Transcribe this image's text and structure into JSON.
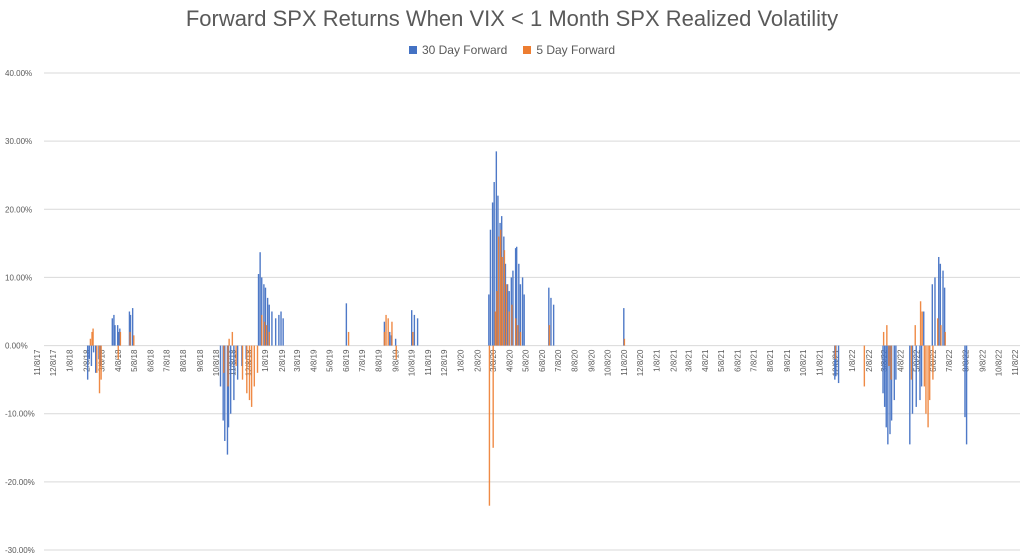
{
  "chart_data": {
    "type": "bar",
    "title": "Forward SPX Returns When VIX < 1 Month SPX Realized Volatility",
    "xlabel": "",
    "ylabel": "",
    "ylim": [
      -0.3,
      0.4
    ],
    "grid": true,
    "legend_position": "top",
    "y_ticks": [
      "40.00%",
      "30.00%",
      "20.00%",
      "10.00%",
      "0.00%",
      "-10.00%",
      "-20.00%",
      "-30.00%"
    ],
    "x_ticks": [
      "11/8/17",
      "12/8/17",
      "1/8/18",
      "2/8/18",
      "3/8/18",
      "4/8/18",
      "5/8/18",
      "6/8/18",
      "7/8/18",
      "8/8/18",
      "9/8/18",
      "10/8/18",
      "11/8/18",
      "12/8/18",
      "1/8/19",
      "2/8/19",
      "3/8/19",
      "4/8/19",
      "5/8/19",
      "6/8/19",
      "7/8/19",
      "8/8/19",
      "9/8/19",
      "10/8/19",
      "11/8/19",
      "12/8/19",
      "1/8/20",
      "2/8/20",
      "3/8/20",
      "4/8/20",
      "5/8/20",
      "6/8/20",
      "7/8/20",
      "8/8/20",
      "9/8/20",
      "10/8/20",
      "11/8/20",
      "12/8/20",
      "1/8/21",
      "2/8/21",
      "3/8/21",
      "4/8/21",
      "5/8/21",
      "6/8/21",
      "7/8/21",
      "8/8/21",
      "9/8/21",
      "10/8/21",
      "11/8/21",
      "12/8/21",
      "1/8/22",
      "2/8/22",
      "3/8/22",
      "4/8/22",
      "5/8/22",
      "6/8/22",
      "7/8/22",
      "8/8/22",
      "9/8/22",
      "10/8/22",
      "11/8/22"
    ],
    "series": [
      {
        "name": "30 Day Forward",
        "color": "#4472C4",
        "points": [
          [
            "2018-02-05",
            -0.05
          ],
          [
            "2018-02-08",
            -0.02
          ],
          [
            "2018-02-12",
            -0.03
          ],
          [
            "2018-02-16",
            -0.01
          ],
          [
            "2018-02-20",
            -0.04
          ],
          [
            "2018-02-26",
            -0.02
          ],
          [
            "2018-03-01",
            -0.03
          ],
          [
            "2018-03-23",
            0.04
          ],
          [
            "2018-03-26",
            0.045
          ],
          [
            "2018-03-28",
            0.03
          ],
          [
            "2018-04-02",
            0.03
          ],
          [
            "2018-04-04",
            0.02
          ],
          [
            "2018-04-06",
            0.025
          ],
          [
            "2018-04-24",
            0.05
          ],
          [
            "2018-04-26",
            0.045
          ],
          [
            "2018-04-30",
            0.055
          ],
          [
            "2018-10-11",
            -0.06
          ],
          [
            "2018-10-16",
            -0.11
          ],
          [
            "2018-10-19",
            -0.14
          ],
          [
            "2018-10-24",
            -0.16
          ],
          [
            "2018-10-26",
            -0.12
          ],
          [
            "2018-10-30",
            -0.1
          ],
          [
            "2018-11-05",
            -0.08
          ],
          [
            "2018-11-12",
            -0.05
          ],
          [
            "2018-11-20",
            -0.03
          ],
          [
            "2018-11-28",
            -0.02
          ],
          [
            "2018-12-21",
            0.105
          ],
          [
            "2018-12-24",
            0.137
          ],
          [
            "2018-12-27",
            0.1
          ],
          [
            "2018-12-31",
            0.09
          ],
          [
            "2019-01-03",
            0.085
          ],
          [
            "2019-01-07",
            0.07
          ],
          [
            "2019-01-10",
            0.06
          ],
          [
            "2019-01-15",
            0.05
          ],
          [
            "2019-01-22",
            0.04
          ],
          [
            "2019-01-28",
            0.045
          ],
          [
            "2019-02-01",
            0.05
          ],
          [
            "2019-02-05",
            0.04
          ],
          [
            "2019-06-03",
            0.062
          ],
          [
            "2019-08-13",
            0.035
          ],
          [
            "2019-08-23",
            0.02
          ],
          [
            "2019-08-26",
            0.015
          ],
          [
            "2019-09-03",
            0.01
          ],
          [
            "2019-10-03",
            0.052
          ],
          [
            "2019-10-08",
            0.045
          ],
          [
            "2019-10-14",
            0.04
          ],
          [
            "2020-02-24",
            0.075
          ],
          [
            "2020-02-27",
            0.17
          ],
          [
            "2020-03-02",
            0.21
          ],
          [
            "2020-03-05",
            0.24
          ],
          [
            "2020-03-09",
            0.285
          ],
          [
            "2020-03-12",
            0.22
          ],
          [
            "2020-03-16",
            0.18
          ],
          [
            "2020-03-19",
            0.19
          ],
          [
            "2020-03-23",
            0.16
          ],
          [
            "2020-03-26",
            0.12
          ],
          [
            "2020-03-30",
            0.09
          ],
          [
            "2020-04-02",
            0.08
          ],
          [
            "2020-04-06",
            0.1
          ],
          [
            "2020-04-09",
            0.11
          ],
          [
            "2020-04-14",
            0.143
          ],
          [
            "2020-04-16",
            0.145
          ],
          [
            "2020-04-20",
            0.12
          ],
          [
            "2020-04-23",
            0.09
          ],
          [
            "2020-04-27",
            0.1
          ],
          [
            "2020-04-30",
            0.075
          ],
          [
            "2020-06-15",
            0.085
          ],
          [
            "2020-06-19",
            0.07
          ],
          [
            "2020-06-24",
            0.06
          ],
          [
            "2020-11-02",
            0.055
          ],
          [
            "2021-12-01",
            -0.05
          ],
          [
            "2021-12-03",
            -0.045
          ],
          [
            "2021-12-08",
            -0.055
          ],
          [
            "2022-03-01",
            -0.07
          ],
          [
            "2022-03-04",
            -0.09
          ],
          [
            "2022-03-07",
            -0.12
          ],
          [
            "2022-03-10",
            -0.145
          ],
          [
            "2022-03-14",
            -0.13
          ],
          [
            "2022-03-17",
            -0.11
          ],
          [
            "2022-03-22",
            -0.08
          ],
          [
            "2022-03-25",
            -0.05
          ],
          [
            "2022-04-20",
            -0.145
          ],
          [
            "2022-04-25",
            -0.1
          ],
          [
            "2022-05-02",
            -0.09
          ],
          [
            "2022-05-09",
            -0.08
          ],
          [
            "2022-05-12",
            -0.06
          ],
          [
            "2022-05-16",
            0.05
          ],
          [
            "2022-06-01",
            0.09
          ],
          [
            "2022-06-06",
            0.1
          ],
          [
            "2022-06-13",
            0.13
          ],
          [
            "2022-06-16",
            0.12
          ],
          [
            "2022-06-21",
            0.11
          ],
          [
            "2022-06-24",
            0.085
          ],
          [
            "2022-08-01",
            -0.105
          ],
          [
            "2022-08-04",
            -0.145
          ]
        ]
      },
      {
        "name": "5 Day Forward",
        "color": "#ED7D31",
        "points": [
          [
            "2018-02-09",
            0.01
          ],
          [
            "2018-02-12",
            0.02
          ],
          [
            "2018-02-14",
            0.025
          ],
          [
            "2018-02-21",
            -0.04
          ],
          [
            "2018-02-26",
            -0.07
          ],
          [
            "2018-03-01",
            -0.05
          ],
          [
            "2018-04-02",
            -0.02
          ],
          [
            "2018-04-06",
            0.02
          ],
          [
            "2018-04-24",
            0.02
          ],
          [
            "2018-05-01",
            0.015
          ],
          [
            "2018-10-16",
            -0.04
          ],
          [
            "2018-10-24",
            -0.06
          ],
          [
            "2018-10-26",
            0.01
          ],
          [
            "2018-11-01",
            0.02
          ],
          [
            "2018-11-08",
            -0.03
          ],
          [
            "2018-11-20",
            -0.05
          ],
          [
            "2018-11-28",
            -0.07
          ],
          [
            "2018-12-03",
            -0.08
          ],
          [
            "2018-12-07",
            -0.09
          ],
          [
            "2018-12-12",
            -0.06
          ],
          [
            "2018-12-18",
            -0.04
          ],
          [
            "2018-12-26",
            0.045
          ],
          [
            "2018-12-31",
            0.035
          ],
          [
            "2019-01-04",
            0.03
          ],
          [
            "2019-01-09",
            0.02
          ],
          [
            "2019-06-06",
            0.02
          ],
          [
            "2019-08-12",
            0.02
          ],
          [
            "2019-08-15",
            0.045
          ],
          [
            "2019-08-19",
            0.04
          ],
          [
            "2019-08-26",
            0.035
          ],
          [
            "2019-09-03",
            -0.02
          ],
          [
            "2019-10-04",
            0.02
          ],
          [
            "2020-02-24",
            -0.235
          ],
          [
            "2020-03-02",
            -0.15
          ],
          [
            "2020-03-06",
            0.05
          ],
          [
            "2020-03-09",
            0.08
          ],
          [
            "2020-03-12",
            0.16
          ],
          [
            "2020-03-16",
            0.17
          ],
          [
            "2020-03-19",
            0.13
          ],
          [
            "2020-03-23",
            0.14
          ],
          [
            "2020-03-27",
            0.09
          ],
          [
            "2020-04-01",
            0.05
          ],
          [
            "2020-04-06",
            0.06
          ],
          [
            "2020-04-13",
            0.04
          ],
          [
            "2020-04-17",
            0.03
          ],
          [
            "2020-04-22",
            0.02
          ],
          [
            "2020-06-15",
            0.03
          ],
          [
            "2020-11-02",
            0.01
          ],
          [
            "2021-12-01",
            -0.02
          ],
          [
            "2022-01-24",
            -0.06
          ],
          [
            "2022-03-01",
            0.02
          ],
          [
            "2022-03-07",
            0.03
          ],
          [
            "2022-03-11",
            -0.03
          ],
          [
            "2022-03-15",
            -0.05
          ],
          [
            "2022-04-22",
            -0.05
          ],
          [
            "2022-04-29",
            0.03
          ],
          [
            "2022-05-09",
            0.065
          ],
          [
            "2022-05-12",
            0.05
          ],
          [
            "2022-05-16",
            -0.06
          ],
          [
            "2022-05-19",
            -0.1
          ],
          [
            "2022-05-23",
            -0.12
          ],
          [
            "2022-05-26",
            -0.08
          ],
          [
            "2022-06-01",
            -0.05
          ],
          [
            "2022-06-10",
            0.04
          ],
          [
            "2022-06-16",
            0.03
          ],
          [
            "2022-06-24",
            0.02
          ]
        ]
      }
    ]
  }
}
